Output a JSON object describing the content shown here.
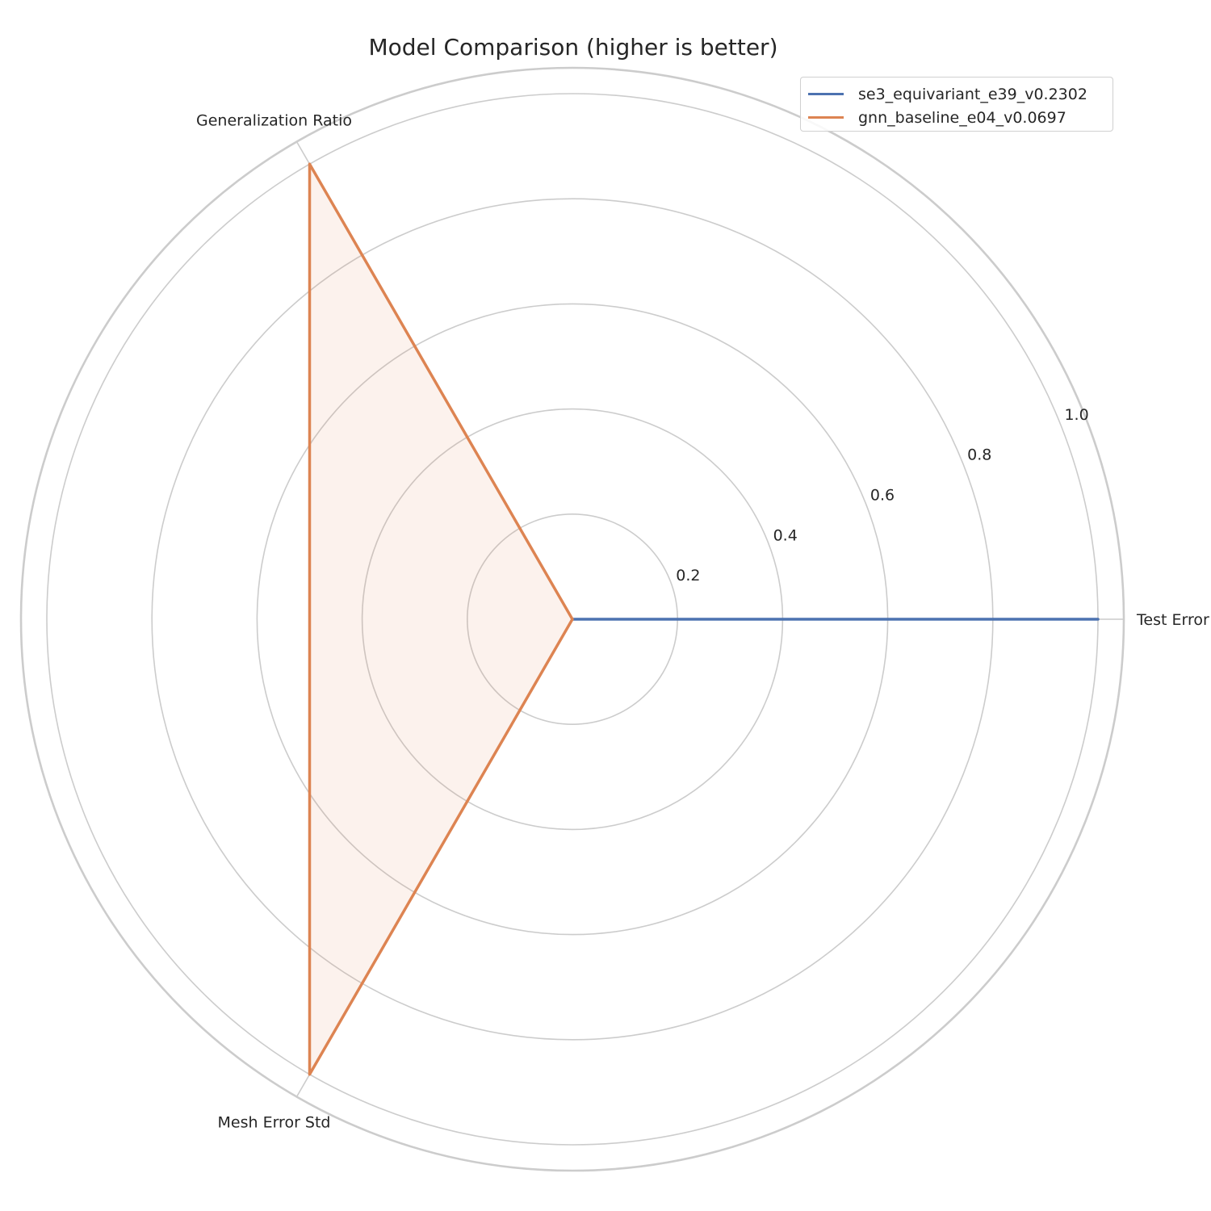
{
  "chart_data": {
    "type": "radar",
    "title": "Model Comparison (higher is better)",
    "axes": [
      "Test Error",
      "Generalization Ratio",
      "Mesh Error Std"
    ],
    "rlim": [
      0,
      1.0
    ],
    "rticks": [
      0.2,
      0.4,
      0.6,
      0.8,
      1.0
    ],
    "rtick_labels": [
      "0.2",
      "0.4",
      "0.6",
      "0.8",
      "1.0"
    ],
    "grid": true,
    "legend_position": "top-right",
    "series": [
      {
        "name": "se3_equivariant_e39_v0.2302",
        "values": [
          1.0,
          0.0,
          0.0
        ],
        "color": "#4c72b0"
      },
      {
        "name": "gnn_baseline_e04_v0.0697",
        "values": [
          0.0,
          1.0,
          1.0
        ],
        "color": "#dd8452"
      }
    ]
  }
}
